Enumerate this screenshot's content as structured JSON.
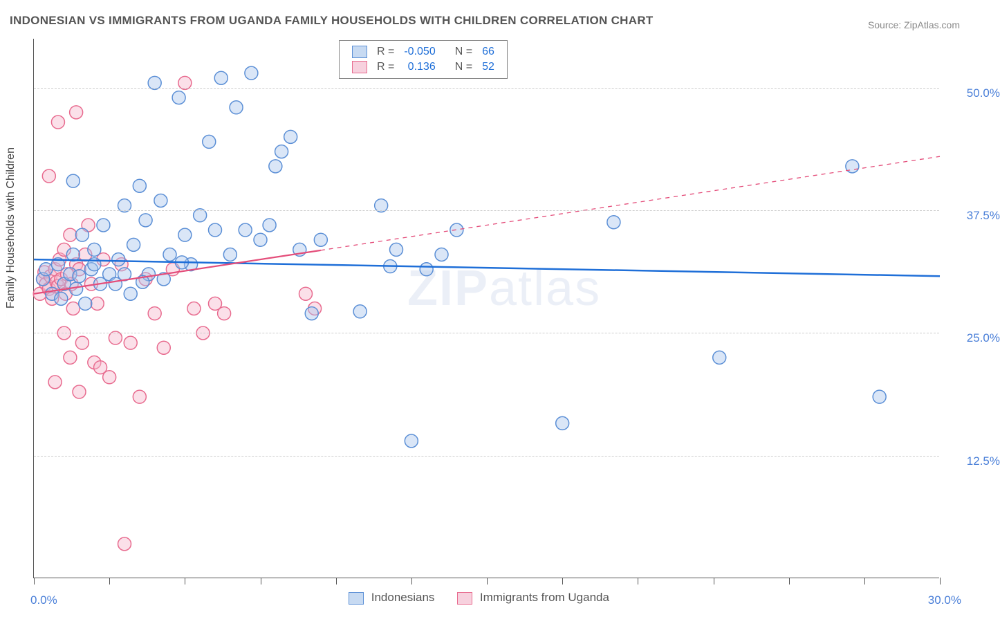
{
  "title": "INDONESIAN VS IMMIGRANTS FROM UGANDA FAMILY HOUSEHOLDS WITH CHILDREN CORRELATION CHART",
  "source": "Source: ZipAtlas.com",
  "watermark": "ZIPatlas",
  "chart": {
    "type": "scatter",
    "y_axis_title": "Family Households with Children",
    "xlim": [
      0,
      30
    ],
    "ylim": [
      0,
      55
    ],
    "x_ticks": [
      0,
      2.5,
      5,
      7.5,
      10,
      12.5,
      15,
      17.5,
      20,
      22.5,
      25,
      27.5,
      30
    ],
    "x_label_min": "0.0%",
    "x_label_max": "30.0%",
    "y_ticks": [
      12.5,
      25.0,
      37.5,
      50.0
    ],
    "y_tick_labels": [
      "12.5%",
      "25.0%",
      "37.5%",
      "50.0%"
    ],
    "grid_color": "#cccccc",
    "axis_color": "#555555",
    "background_color": "#ffffff",
    "marker_radius": 9.5,
    "marker_stroke_width": 1.5,
    "marker_fill_opacity": 0.18,
    "series": [
      {
        "name": "Indonesians",
        "color_stroke": "#5b8fd6",
        "color_fill": "#a9c6ec",
        "R": "-0.050",
        "N": "66",
        "regression": {
          "x1": 0,
          "y1": 32.5,
          "x2": 30,
          "y2": 30.8,
          "solid_until_x": 30,
          "line_color": "#1f6fd8",
          "line_width": 2.5
        },
        "points": [
          [
            0.3,
            30.5
          ],
          [
            0.4,
            31.5
          ],
          [
            0.6,
            29.0
          ],
          [
            0.8,
            32.0
          ],
          [
            0.9,
            28.5
          ],
          [
            1.0,
            30.0
          ],
          [
            1.2,
            31.0
          ],
          [
            1.3,
            33.0
          ],
          [
            1.4,
            29.5
          ],
          [
            1.5,
            30.8
          ],
          [
            1.6,
            35.0
          ],
          [
            1.7,
            28.0
          ],
          [
            1.9,
            31.5
          ],
          [
            2.0,
            33.5
          ],
          [
            2.2,
            30.0
          ],
          [
            2.3,
            36.0
          ],
          [
            2.5,
            31.0
          ],
          [
            1.3,
            40.5
          ],
          [
            2.8,
            32.5
          ],
          [
            3.0,
            38.0
          ],
          [
            3.2,
            29.0
          ],
          [
            3.3,
            34.0
          ],
          [
            3.5,
            40.0
          ],
          [
            3.7,
            36.5
          ],
          [
            3.8,
            31.0
          ],
          [
            4.0,
            50.5
          ],
          [
            4.2,
            38.5
          ],
          [
            4.5,
            33.0
          ],
          [
            4.8,
            49.0
          ],
          [
            5.0,
            35.0
          ],
          [
            5.2,
            32.0
          ],
          [
            5.5,
            37.0
          ],
          [
            5.8,
            44.5
          ],
          [
            6.0,
            35.5
          ],
          [
            6.2,
            51.0
          ],
          [
            6.5,
            33.0
          ],
          [
            6.7,
            48.0
          ],
          [
            7.0,
            35.5
          ],
          [
            7.2,
            51.5
          ],
          [
            7.5,
            34.5
          ],
          [
            7.8,
            36.0
          ],
          [
            8.0,
            42.0
          ],
          [
            8.2,
            43.5
          ],
          [
            8.5,
            45.0
          ],
          [
            8.8,
            33.5
          ],
          [
            9.2,
            27.0
          ],
          [
            9.5,
            34.5
          ],
          [
            10.8,
            27.2
          ],
          [
            11.5,
            38.0
          ],
          [
            11.8,
            31.8
          ],
          [
            12.0,
            33.5
          ],
          [
            12.5,
            14.0
          ],
          [
            13.0,
            31.5
          ],
          [
            13.5,
            33.0
          ],
          [
            14.0,
            35.5
          ],
          [
            17.5,
            15.8
          ],
          [
            19.2,
            36.3
          ],
          [
            22.7,
            22.5
          ],
          [
            27.1,
            42.0
          ],
          [
            28.0,
            18.5
          ],
          [
            2.0,
            32.0
          ],
          [
            2.7,
            30.0
          ],
          [
            3.0,
            31.0
          ],
          [
            3.6,
            30.2
          ],
          [
            4.3,
            30.5
          ],
          [
            4.9,
            32.2
          ]
        ]
      },
      {
        "name": "Immigrants from Uganda",
        "color_stroke": "#e86b8f",
        "color_fill": "#f5b8cc",
        "R": "0.136",
        "N": "52",
        "regression": {
          "x1": 0,
          "y1": 29.0,
          "x2": 30,
          "y2": 43.0,
          "solid_until_x": 9.5,
          "line_color": "#e44d7a",
          "line_width": 2.2
        },
        "points": [
          [
            0.2,
            29.0
          ],
          [
            0.3,
            30.5
          ],
          [
            0.35,
            31.2
          ],
          [
            0.4,
            30.0
          ],
          [
            0.5,
            29.5
          ],
          [
            0.55,
            30.8
          ],
          [
            0.6,
            28.5
          ],
          [
            0.7,
            31.5
          ],
          [
            0.75,
            30.2
          ],
          [
            0.8,
            29.8
          ],
          [
            0.85,
            32.5
          ],
          [
            0.9,
            30.5
          ],
          [
            1.0,
            33.5
          ],
          [
            1.05,
            29.0
          ],
          [
            1.1,
            31.0
          ],
          [
            1.2,
            35.0
          ],
          [
            1.25,
            30.0
          ],
          [
            1.3,
            27.5
          ],
          [
            1.4,
            32.0
          ],
          [
            1.5,
            31.5
          ],
          [
            1.6,
            24.0
          ],
          [
            1.7,
            33.0
          ],
          [
            1.8,
            36.0
          ],
          [
            1.9,
            30.0
          ],
          [
            2.0,
            22.0
          ],
          [
            2.1,
            28.0
          ],
          [
            2.3,
            32.5
          ],
          [
            2.5,
            20.5
          ],
          [
            2.7,
            24.5
          ],
          [
            2.9,
            32.0
          ],
          [
            3.2,
            24.0
          ],
          [
            3.5,
            18.5
          ],
          [
            3.7,
            30.5
          ],
          [
            4.0,
            27.0
          ],
          [
            4.3,
            23.5
          ],
          [
            4.6,
            31.5
          ],
          [
            5.0,
            50.5
          ],
          [
            5.3,
            27.5
          ],
          [
            5.6,
            25.0
          ],
          [
            6.0,
            28.0
          ],
          [
            6.3,
            27.0
          ],
          [
            0.5,
            41.0
          ],
          [
            0.8,
            46.5
          ],
          [
            1.4,
            47.5
          ],
          [
            1.0,
            25.0
          ],
          [
            1.2,
            22.5
          ],
          [
            0.7,
            20.0
          ],
          [
            1.5,
            19.0
          ],
          [
            2.2,
            21.5
          ],
          [
            3.0,
            3.5
          ],
          [
            9.0,
            29.0
          ],
          [
            9.3,
            27.5
          ]
        ]
      }
    ],
    "legend_top": {
      "rows": [
        {
          "swatch_fill": "#c7daf2",
          "swatch_border": "#5b8fd6",
          "r_label": "R =",
          "r_value": "-0.050",
          "n_label": "N =",
          "n_value": "66"
        },
        {
          "swatch_fill": "#f7d1de",
          "swatch_border": "#e86b8f",
          "r_label": "R =",
          "r_value": "0.136",
          "n_label": "N =",
          "n_value": "52"
        }
      ],
      "text_color_label": "#555555",
      "text_color_value": "#1f6fd8"
    },
    "legend_bottom": {
      "items": [
        {
          "swatch_fill": "#c7daf2",
          "swatch_border": "#5b8fd6",
          "label": "Indonesians"
        },
        {
          "swatch_fill": "#f7d1de",
          "swatch_border": "#e86b8f",
          "label": "Immigrants from Uganda"
        }
      ]
    }
  }
}
